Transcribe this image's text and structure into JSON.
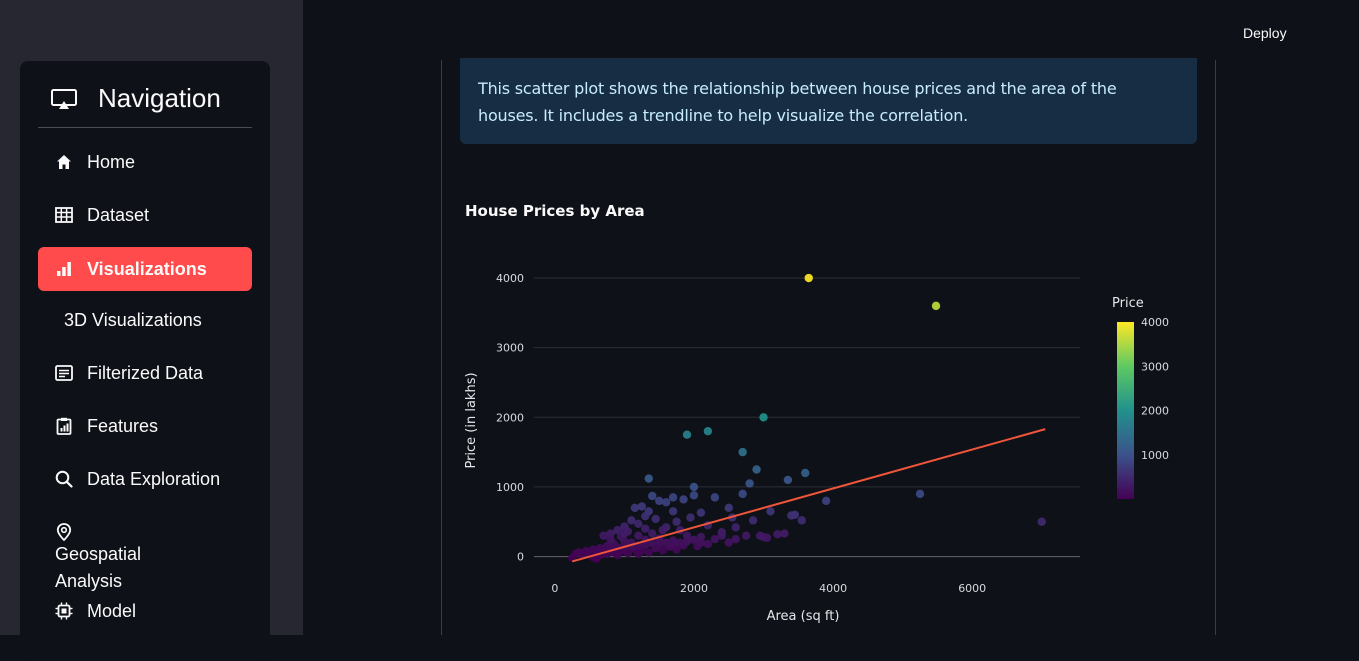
{
  "header": {
    "deploy_label": "Deploy"
  },
  "sidebar": {
    "title": "Navigation",
    "items": [
      {
        "label": "Home",
        "icon": "home-icon"
      },
      {
        "label": "Dataset",
        "icon": "table-icon"
      },
      {
        "label": "Visualizations",
        "icon": "bar-chart-icon",
        "active": true
      },
      {
        "label": "3D Visualizations",
        "icon": ""
      },
      {
        "label": "Filterized Data",
        "icon": "document-icon"
      },
      {
        "label": "Features",
        "icon": "clipboard-chart-icon"
      },
      {
        "label": "Data Exploration",
        "icon": "search-icon"
      },
      {
        "label": "Geospatial Analysis",
        "icon": "location-pin-icon"
      },
      {
        "label": "Model",
        "icon": "chip-icon"
      }
    ],
    "accent_color": "#ff4b4b"
  },
  "main": {
    "info_text": "This scatter plot shows the relationship between house prices and the area of the houses. It includes a trendline to help visualize the correlation."
  },
  "chart_data": {
    "type": "scatter",
    "title": "House Prices by Area",
    "xlabel": "Area (sq ft)",
    "ylabel": "Price (in lakhs)",
    "xlim": [
      -300,
      7550
    ],
    "ylim": [
      -150,
      4230
    ],
    "xticks": [
      0,
      2000,
      4000,
      6000
    ],
    "yticks": [
      0,
      1000,
      2000,
      3000,
      4000
    ],
    "grid": true,
    "colorbar": {
      "title": "Price",
      "ticks": [
        1000,
        2000,
        3000,
        4000
      ],
      "range": [
        0,
        4000
      ],
      "colorscale": "viridis"
    },
    "points": [
      [
        3650,
        4000
      ],
      [
        5480,
        3600
      ],
      [
        3000,
        2000
      ],
      [
        2200,
        1800
      ],
      [
        1900,
        1750
      ],
      [
        2700,
        1500
      ],
      [
        2900,
        1250
      ],
      [
        2800,
        1050
      ],
      [
        3600,
        1200
      ],
      [
        3350,
        1100
      ],
      [
        1350,
        1120
      ],
      [
        2000,
        1000
      ],
      [
        2700,
        900
      ],
      [
        2300,
        850
      ],
      [
        3900,
        800
      ],
      [
        5250,
        900
      ],
      [
        7000,
        500
      ],
      [
        1400,
        870
      ],
      [
        1700,
        850
      ],
      [
        1850,
        820
      ],
      [
        2000,
        880
      ],
      [
        1500,
        800
      ],
      [
        1600,
        780
      ],
      [
        1250,
        720
      ],
      [
        1150,
        700
      ],
      [
        1350,
        650
      ],
      [
        2500,
        700
      ],
      [
        3100,
        650
      ],
      [
        3450,
        600
      ],
      [
        3550,
        520
      ],
      [
        2550,
        560
      ],
      [
        2850,
        520
      ],
      [
        2100,
        630
      ],
      [
        1950,
        560
      ],
      [
        1700,
        650
      ],
      [
        1450,
        540
      ],
      [
        1300,
        580
      ],
      [
        1100,
        520
      ],
      [
        1200,
        470
      ],
      [
        1000,
        430
      ],
      [
        1050,
        360
      ],
      [
        900,
        380
      ],
      [
        800,
        330
      ],
      [
        700,
        300
      ],
      [
        950,
        290
      ],
      [
        1200,
        300
      ],
      [
        1400,
        330
      ],
      [
        1600,
        420
      ],
      [
        1800,
        380
      ],
      [
        2200,
        450
      ],
      [
        2400,
        350
      ],
      [
        2600,
        420
      ],
      [
        2750,
        300
      ],
      [
        3000,
        280
      ],
      [
        3200,
        320
      ],
      [
        3300,
        330
      ],
      [
        2950,
        300
      ],
      [
        3050,
        270
      ],
      [
        3400,
        590
      ],
      [
        1900,
        300
      ],
      [
        2100,
        280
      ],
      [
        2300,
        250
      ],
      [
        2500,
        200
      ],
      [
        1700,
        230
      ],
      [
        1500,
        260
      ],
      [
        1300,
        240
      ],
      [
        1100,
        200
      ],
      [
        1000,
        220
      ],
      [
        850,
        180
      ],
      [
        750,
        150
      ],
      [
        650,
        120
      ],
      [
        550,
        100
      ],
      [
        450,
        80
      ],
      [
        350,
        60
      ],
      [
        300,
        40
      ],
      [
        400,
        30
      ],
      [
        500,
        50
      ],
      [
        600,
        70
      ],
      [
        700,
        90
      ],
      [
        800,
        110
      ],
      [
        900,
        130
      ],
      [
        1000,
        150
      ],
      [
        1100,
        140
      ],
      [
        1200,
        160
      ],
      [
        1300,
        170
      ],
      [
        1400,
        190
      ],
      [
        1500,
        180
      ],
      [
        1600,
        200
      ],
      [
        1700,
        170
      ],
      [
        1800,
        200
      ],
      [
        1900,
        220
      ],
      [
        2000,
        240
      ],
      [
        2100,
        200
      ],
      [
        2200,
        180
      ],
      [
        1150,
        110
      ],
      [
        950,
        80
      ],
      [
        850,
        60
      ],
      [
        750,
        40
      ],
      [
        650,
        20
      ],
      [
        550,
        -10
      ],
      [
        1250,
        90
      ],
      [
        1450,
        120
      ],
      [
        1650,
        140
      ],
      [
        1850,
        160
      ],
      [
        2050,
        150
      ],
      [
        1750,
        100
      ],
      [
        1550,
        90
      ],
      [
        1350,
        60
      ],
      [
        1050,
        50
      ],
      [
        250,
        -20
      ],
      [
        600,
        -30
      ],
      [
        900,
        20
      ],
      [
        1200,
        40
      ],
      [
        2400,
        300
      ],
      [
        2600,
        250
      ],
      [
        1000,
        330
      ],
      [
        800,
        250
      ],
      [
        1300,
        400
      ],
      [
        1550,
        380
      ],
      [
        1750,
        500
      ]
    ],
    "trendline": {
      "x": [
        250,
        7050
      ],
      "y": [
        -70,
        1830
      ],
      "color": "#ef553b"
    }
  }
}
